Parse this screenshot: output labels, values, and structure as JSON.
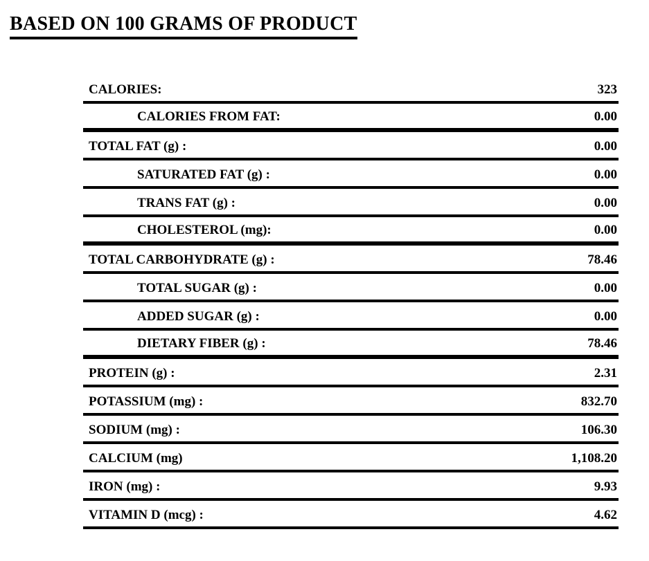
{
  "title": "BASED ON 100 GRAMS OF PRODUCT",
  "colors": {
    "background": "#ffffff",
    "text": "#000000",
    "rule": "#000000"
  },
  "table": {
    "rows": [
      {
        "label": "CALORIES:",
        "value": "323",
        "indent": 0,
        "group_end": false
      },
      {
        "label": "CALORIES FROM FAT:",
        "value": "0.00",
        "indent": 1,
        "group_end": true
      },
      {
        "label": "TOTAL FAT (g) :",
        "value": "0.00",
        "indent": 0,
        "group_end": false
      },
      {
        "label": "SATURATED FAT (g) :",
        "value": "0.00",
        "indent": 1,
        "group_end": false
      },
      {
        "label": "TRANS FAT (g) :",
        "value": "0.00",
        "indent": 1,
        "group_end": false
      },
      {
        "label": "CHOLESTEROL (mg):",
        "value": "0.00",
        "indent": 1,
        "group_end": true
      },
      {
        "label": "TOTAL CARBOHYDRATE (g) :",
        "value": "78.46",
        "indent": 0,
        "group_end": false
      },
      {
        "label": "TOTAL SUGAR (g) :",
        "value": "0.00",
        "indent": 1,
        "group_end": false
      },
      {
        "label": "ADDED SUGAR (g) :",
        "value": "0.00",
        "indent": 1,
        "group_end": false
      },
      {
        "label": "DIETARY FIBER (g) :",
        "value": "78.46",
        "indent": 1,
        "group_end": true
      },
      {
        "label": "PROTEIN (g) :",
        "value": "2.31",
        "indent": 0,
        "group_end": false
      },
      {
        "label": "POTASSIUM (mg) :",
        "value": "832.70",
        "indent": 0,
        "group_end": false
      },
      {
        "label": "SODIUM (mg) :",
        "value": "106.30",
        "indent": 0,
        "group_end": false
      },
      {
        "label": "CALCIUM (mg)",
        "value": "1,108.20",
        "indent": 0,
        "group_end": false
      },
      {
        "label": "IRON (mg) :",
        "value": "9.93",
        "indent": 0,
        "group_end": false
      },
      {
        "label": "VITAMIN D (mcg) :",
        "value": "4.62",
        "indent": 0,
        "group_end": false
      }
    ]
  }
}
